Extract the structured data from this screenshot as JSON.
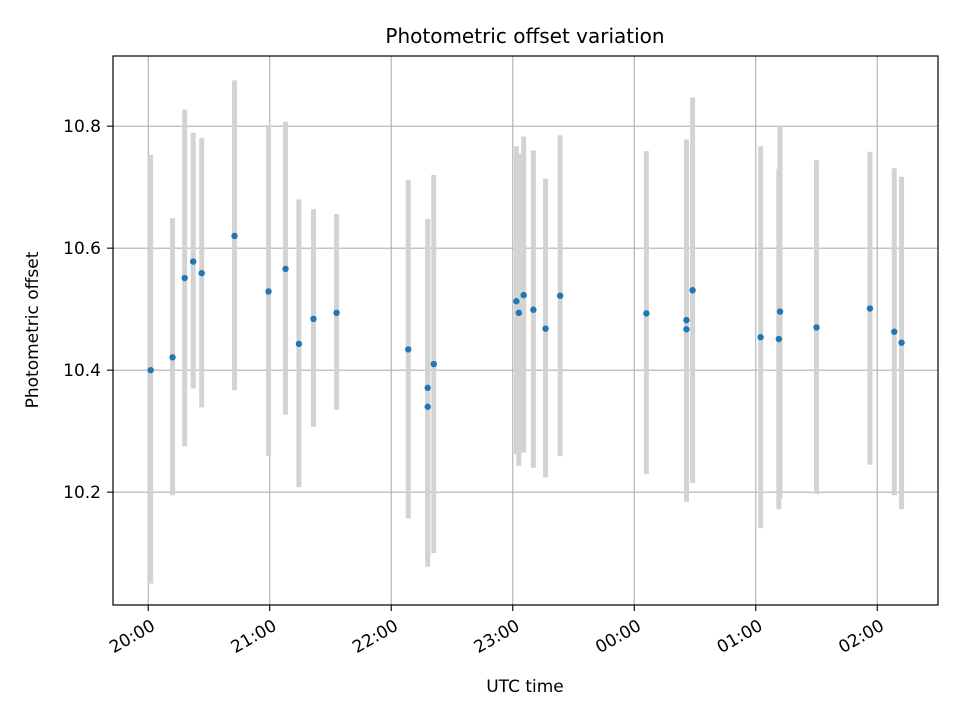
{
  "chart_data": {
    "type": "scatter",
    "title": "Photometric offset variation",
    "xlabel": "UTC time",
    "ylabel": "Photometric offset",
    "x_ticks": [
      "20:00",
      "21:00",
      "22:00",
      "23:00",
      "00:00",
      "01:00",
      "02:00"
    ],
    "y_ticks": [
      "10.2",
      "10.4",
      "10.6",
      "10.8"
    ],
    "y_tick_values": [
      10.2,
      10.4,
      10.6,
      10.8
    ],
    "x_range_hours": [
      -0.29,
      6.5
    ],
    "ylim": [
      10.015,
      10.915
    ],
    "grid": true,
    "point_color": "#1f77b4",
    "errorbar_color": "#d3d3d3",
    "points": [
      {
        "t": 0.02,
        "y": 10.4,
        "lo": 10.05,
        "hi": 10.753
      },
      {
        "t": 0.2,
        "y": 10.421,
        "lo": 10.195,
        "hi": 10.649
      },
      {
        "t": 0.3,
        "y": 10.551,
        "lo": 10.275,
        "hi": 10.827
      },
      {
        "t": 0.37,
        "y": 10.578,
        "lo": 10.37,
        "hi": 10.789
      },
      {
        "t": 0.44,
        "y": 10.559,
        "lo": 10.339,
        "hi": 10.781
      },
      {
        "t": 0.71,
        "y": 10.62,
        "lo": 10.367,
        "hi": 10.875
      },
      {
        "t": 0.99,
        "y": 10.529,
        "lo": 10.259,
        "hi": 10.802
      },
      {
        "t": 1.13,
        "y": 10.566,
        "lo": 10.327,
        "hi": 10.807
      },
      {
        "t": 1.24,
        "y": 10.443,
        "lo": 10.208,
        "hi": 10.68
      },
      {
        "t": 1.36,
        "y": 10.484,
        "lo": 10.307,
        "hi": 10.664
      },
      {
        "t": 1.55,
        "y": 10.494,
        "lo": 10.335,
        "hi": 10.656
      },
      {
        "t": 2.14,
        "y": 10.434,
        "lo": 10.157,
        "hi": 10.712
      },
      {
        "t": 2.3,
        "y": 10.371,
        "lo": 10.078,
        "hi": 10.648
      },
      {
        "t": 2.3,
        "y": 10.34,
        "lo": 10.09,
        "hi": 10.6
      },
      {
        "t": 2.35,
        "y": 10.41,
        "lo": 10.1,
        "hi": 10.72
      },
      {
        "t": 3.03,
        "y": 10.513,
        "lo": 10.262,
        "hi": 10.767
      },
      {
        "t": 3.05,
        "y": 10.494,
        "lo": 10.243,
        "hi": 10.755
      },
      {
        "t": 3.09,
        "y": 10.523,
        "lo": 10.265,
        "hi": 10.783
      },
      {
        "t": 3.17,
        "y": 10.499,
        "lo": 10.24,
        "hi": 10.76
      },
      {
        "t": 3.27,
        "y": 10.468,
        "lo": 10.224,
        "hi": 10.714
      },
      {
        "t": 3.39,
        "y": 10.522,
        "lo": 10.259,
        "hi": 10.785
      },
      {
        "t": 4.1,
        "y": 10.493,
        "lo": 10.23,
        "hi": 10.759
      },
      {
        "t": 4.43,
        "y": 10.482,
        "lo": 10.184,
        "hi": 10.778
      },
      {
        "t": 4.43,
        "y": 10.467,
        "lo": 10.19,
        "hi": 10.752
      },
      {
        "t": 4.48,
        "y": 10.531,
        "lo": 10.215,
        "hi": 10.847
      },
      {
        "t": 5.04,
        "y": 10.454,
        "lo": 10.141,
        "hi": 10.767
      },
      {
        "t": 5.19,
        "y": 10.451,
        "lo": 10.172,
        "hi": 10.73
      },
      {
        "t": 5.2,
        "y": 10.496,
        "lo": 10.19,
        "hi": 10.8
      },
      {
        "t": 5.5,
        "y": 10.47,
        "lo": 10.197,
        "hi": 10.744
      },
      {
        "t": 5.94,
        "y": 10.501,
        "lo": 10.245,
        "hi": 10.758
      },
      {
        "t": 6.14,
        "y": 10.463,
        "lo": 10.195,
        "hi": 10.731
      },
      {
        "t": 6.2,
        "y": 10.445,
        "lo": 10.172,
        "hi": 10.717
      }
    ]
  }
}
